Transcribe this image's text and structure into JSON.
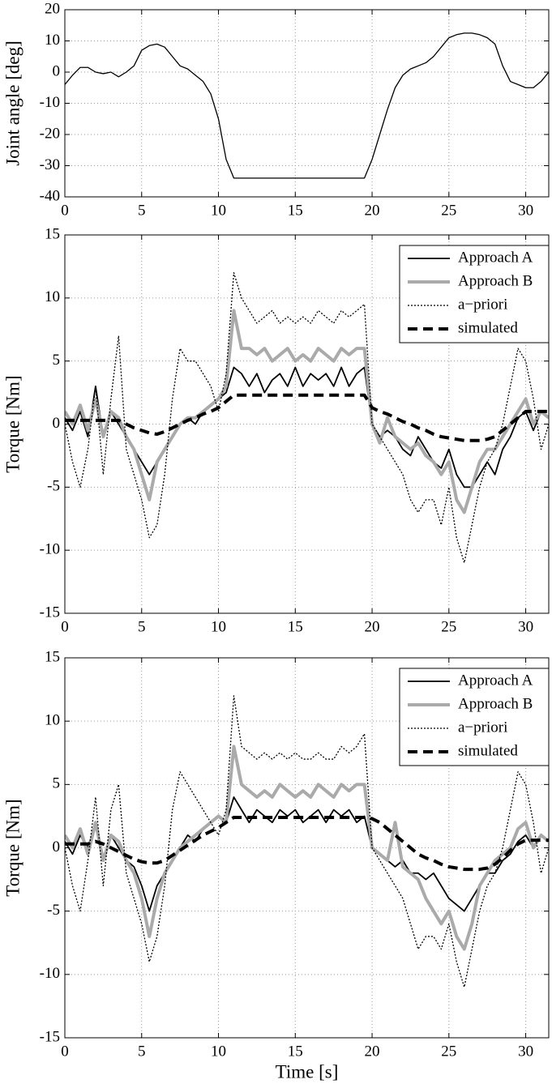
{
  "chart_data": [
    {
      "type": "line",
      "ylabel": "Joint angle [deg]",
      "grid": true,
      "xlim": [
        0,
        31.5
      ],
      "xticks": [
        0,
        5,
        10,
        15,
        20,
        25,
        30
      ],
      "ylim": [
        -40,
        20
      ],
      "yticks": [
        -40,
        -30,
        -20,
        -10,
        0,
        10,
        20
      ],
      "x": [
        0,
        0.5,
        1,
        1.5,
        2,
        2.5,
        3,
        3.5,
        4,
        4.5,
        5,
        5.5,
        6,
        6.5,
        7,
        7.5,
        8,
        8.5,
        9,
        9.5,
        10,
        10.5,
        11,
        11.5,
        12,
        12.5,
        13,
        13.5,
        14,
        14.5,
        15,
        15.5,
        16,
        16.5,
        17,
        17.5,
        18,
        18.5,
        19,
        19.5,
        20,
        20.5,
        21,
        21.5,
        22,
        22.5,
        23,
        23.5,
        24,
        24.5,
        25,
        25.5,
        26,
        26.5,
        27,
        27.5,
        28,
        28.5,
        29,
        29.5,
        30,
        30.5,
        31,
        31.5
      ],
      "series": [
        {
          "color": "#000000",
          "linestyle": "solid",
          "linewidth": 1.3,
          "values": [
            -4,
            -1,
            1.5,
            1.5,
            0,
            -0.5,
            0,
            -1.5,
            0,
            2,
            7,
            8.5,
            9,
            8,
            5,
            2,
            1,
            -1,
            -3,
            -7,
            -15,
            -28,
            -34,
            -34,
            -34,
            -34,
            -34,
            -34,
            -34,
            -34,
            -34,
            -34,
            -34,
            -34,
            -34,
            -34,
            -34,
            -34,
            -34,
            -34,
            -28,
            -20,
            -12,
            -5,
            -1,
            1,
            2,
            3,
            5,
            8,
            11,
            12,
            12.5,
            12.5,
            12,
            11,
            9,
            2,
            -3,
            -4,
            -5,
            -5,
            -3,
            0
          ]
        }
      ]
    },
    {
      "type": "line",
      "ylabel": "Torque [Nm]",
      "grid": true,
      "legend": "upper right",
      "xlim": [
        0,
        31.5
      ],
      "xticks": [
        0,
        5,
        10,
        15,
        20,
        25,
        30
      ],
      "ylim": [
        -15,
        15
      ],
      "yticks": [
        -15,
        -10,
        -5,
        0,
        5,
        10,
        15
      ],
      "x": [
        0,
        0.5,
        1,
        1.5,
        2,
        2.5,
        3,
        3.5,
        4,
        4.5,
        5,
        5.5,
        6,
        6.5,
        7,
        7.5,
        8,
        8.5,
        9,
        9.5,
        10,
        10.5,
        11,
        11.5,
        12,
        12.5,
        13,
        13.5,
        14,
        14.5,
        15,
        15.5,
        16,
        16.5,
        17,
        17.5,
        18,
        18.5,
        19,
        19.5,
        20,
        20.5,
        21,
        21.5,
        22,
        22.5,
        23,
        23.5,
        24,
        24.5,
        25,
        25.5,
        26,
        26.5,
        27,
        27.5,
        28,
        28.5,
        29,
        29.5,
        30,
        30.5,
        31,
        31.5
      ],
      "series": [
        {
          "name": "Approach A",
          "color": "#000000",
          "linestyle": "solid",
          "linewidth": 1.8,
          "values": [
            0.5,
            -0.5,
            1,
            -1,
            3,
            -1,
            1,
            0,
            -1,
            -2,
            -3,
            -4,
            -3,
            -2,
            -1,
            0,
            0.5,
            0,
            1,
            1.5,
            2,
            2.5,
            4.5,
            4,
            3,
            4,
            2.5,
            3.5,
            4,
            3,
            4.5,
            3,
            4,
            3.5,
            4,
            3,
            4.5,
            3,
            4,
            4.5,
            0,
            -1,
            -0.5,
            -1,
            -2,
            -2.5,
            -1,
            -2,
            -3,
            -3.5,
            -2,
            -4,
            -5,
            -5,
            -4,
            -3,
            -4,
            -2,
            -1,
            0.5,
            1,
            -0.5,
            1,
            0.5
          ]
        },
        {
          "name": "Approach B",
          "color": "#aaaaaa",
          "linestyle": "solid",
          "linewidth": 4,
          "values": [
            1,
            0,
            1.5,
            -0.5,
            2,
            -1,
            1,
            0.5,
            -1,
            -2,
            -4,
            -6,
            -3,
            -2,
            -1,
            0,
            0.5,
            0.5,
            1,
            1.5,
            2,
            3,
            9,
            6,
            6,
            5.5,
            6,
            5,
            5.5,
            6,
            5,
            5.5,
            5,
            6,
            5.5,
            5,
            6,
            5.5,
            6,
            6,
            0,
            -1.5,
            0.5,
            -1,
            -1.5,
            -2,
            -1.5,
            -2.5,
            -3,
            -4,
            -3,
            -6,
            -7,
            -5,
            -3,
            -2,
            -2,
            -1,
            0,
            1,
            2,
            0,
            1,
            0.5
          ]
        },
        {
          "name": "a−priori",
          "color": "#000000",
          "linestyle": "dotted",
          "linewidth": 1.3,
          "values": [
            0,
            -3,
            -5,
            -2,
            3,
            -4,
            2,
            7,
            -2,
            -4,
            -6,
            -9,
            -8,
            -4,
            2,
            6,
            5,
            5,
            4,
            3,
            1,
            4,
            12,
            10,
            9,
            8,
            8.5,
            9,
            8,
            8.5,
            8,
            8.5,
            8,
            9,
            8.5,
            8,
            9,
            8.5,
            9,
            9.5,
            0,
            -1,
            -2,
            -3,
            -4,
            -6,
            -7,
            -6,
            -6,
            -8,
            -5,
            -9,
            -11,
            -8,
            -5,
            -3,
            -2,
            0,
            3,
            6,
            5,
            2,
            -2,
            0
          ]
        },
        {
          "name": "simulated",
          "color": "#000000",
          "linestyle": "dashed",
          "linewidth": 4,
          "values": [
            0.3,
            0.3,
            0.3,
            0.3,
            0.3,
            0.3,
            0.3,
            0.3,
            0,
            -0.3,
            -0.5,
            -0.7,
            -0.8,
            -0.6,
            -0.3,
            0,
            0.3,
            0.5,
            0.8,
            1,
            1.3,
            1.8,
            2.3,
            2.3,
            2.3,
            2.3,
            2.3,
            2.3,
            2.3,
            2.3,
            2.3,
            2.3,
            2.3,
            2.3,
            2.3,
            2.3,
            2.3,
            2.3,
            2.3,
            2.3,
            1.3,
            1,
            0.8,
            0.5,
            0.2,
            0,
            -0.3,
            -0.5,
            -0.8,
            -1,
            -1.1,
            -1.2,
            -1.3,
            -1.3,
            -1.3,
            -1.2,
            -1,
            -0.5,
            0,
            0.5,
            1,
            1,
            1,
            1
          ]
        }
      ]
    },
    {
      "type": "line",
      "ylabel": "Torque [Nm]",
      "xlabel": "Time [s]",
      "grid": true,
      "legend": "upper right",
      "xlim": [
        0,
        31.5
      ],
      "xticks": [
        0,
        5,
        10,
        15,
        20,
        25,
        30
      ],
      "ylim": [
        -15,
        15
      ],
      "yticks": [
        -15,
        -10,
        -5,
        0,
        5,
        10,
        15
      ],
      "x": [
        0,
        0.5,
        1,
        1.5,
        2,
        2.5,
        3,
        3.5,
        4,
        4.5,
        5,
        5.5,
        6,
        6.5,
        7,
        7.5,
        8,
        8.5,
        9,
        9.5,
        10,
        10.5,
        11,
        11.5,
        12,
        12.5,
        13,
        13.5,
        14,
        14.5,
        15,
        15.5,
        16,
        16.5,
        17,
        17.5,
        18,
        18.5,
        19,
        19.5,
        20,
        20.5,
        21,
        21.5,
        22,
        22.5,
        23,
        23.5,
        24,
        24.5,
        25,
        25.5,
        26,
        26.5,
        27,
        27.5,
        28,
        28.5,
        29,
        29.5,
        30,
        30.5,
        31,
        31.5
      ],
      "series": [
        {
          "name": "Approach A",
          "color": "#000000",
          "linestyle": "solid",
          "linewidth": 1.8,
          "values": [
            0.5,
            -0.5,
            1,
            0,
            2,
            -1,
            1,
            0,
            -1,
            -1.5,
            -3,
            -5,
            -3,
            -2,
            -1,
            0,
            1,
            0.5,
            1.5,
            2,
            2.5,
            2,
            4,
            3,
            2,
            3,
            2.5,
            2,
            3,
            2.5,
            3,
            2,
            2.5,
            3,
            2,
            3,
            2.5,
            3,
            2,
            2.5,
            0,
            -0.5,
            -1,
            -1.5,
            -1,
            -2,
            -2,
            -2.5,
            -2,
            -3,
            -4,
            -4.5,
            -5,
            -4,
            -3,
            -2,
            -2,
            -1,
            -0.5,
            0.5,
            1,
            0,
            1,
            0.5
          ]
        },
        {
          "name": "Approach B",
          "color": "#aaaaaa",
          "linestyle": "solid",
          "linewidth": 4,
          "values": [
            1,
            0,
            1.5,
            -0.5,
            2,
            -1,
            1,
            0.5,
            -1,
            -2,
            -4,
            -7,
            -4,
            -2,
            -1,
            0,
            0.5,
            1,
            1.5,
            2,
            2.5,
            2,
            8,
            5,
            4.5,
            4,
            4.5,
            4,
            5,
            4.5,
            4,
            4.5,
            4,
            5,
            4.5,
            4,
            5,
            4.5,
            5,
            5,
            0,
            -0.5,
            -1,
            2,
            -1.5,
            -2,
            -2.5,
            -4,
            -5,
            -6,
            -5,
            -7,
            -8,
            -6,
            -3,
            -2,
            -1,
            -0.5,
            0,
            1.5,
            2,
            0,
            1,
            0.5
          ]
        },
        {
          "name": "a−priori",
          "color": "#000000",
          "linestyle": "dotted",
          "linewidth": 1.3,
          "values": [
            0,
            -3,
            -5,
            -1,
            4,
            -3,
            3,
            5,
            -2,
            -4,
            -6,
            -9,
            -7,
            -3,
            3,
            6,
            5,
            4,
            3,
            2,
            1,
            3,
            12,
            8,
            7.5,
            7,
            7.5,
            7,
            7.5,
            7,
            7.5,
            7,
            7,
            7.5,
            7,
            7,
            8,
            7.5,
            8,
            9,
            0,
            -1,
            -2,
            -3,
            -4,
            -6,
            -8,
            -7,
            -7,
            -8,
            -6,
            -9,
            -11,
            -8,
            -5,
            -3,
            -2,
            0,
            3,
            6,
            5,
            2,
            -2,
            0
          ]
        },
        {
          "name": "simulated",
          "color": "#000000",
          "linestyle": "dashed",
          "linewidth": 4,
          "values": [
            0.3,
            0.3,
            0.3,
            0.3,
            0.5,
            0.3,
            0,
            -0.3,
            -0.6,
            -0.9,
            -1.1,
            -1.2,
            -1.2,
            -1,
            -0.6,
            -0.2,
            0.2,
            0.6,
            1,
            1.3,
            1.6,
            2,
            2.4,
            2.4,
            2.4,
            2.4,
            2.4,
            2.4,
            2.4,
            2.4,
            2.4,
            2.4,
            2.4,
            2.4,
            2.4,
            2.4,
            2.4,
            2.4,
            2.4,
            2.4,
            2.3,
            2,
            1.5,
            1,
            0.5,
            0,
            -0.5,
            -0.8,
            -1,
            -1.3,
            -1.5,
            -1.6,
            -1.7,
            -1.7,
            -1.7,
            -1.6,
            -1.3,
            -0.8,
            -0.2,
            0.3,
            0.6,
            0.6,
            0.6,
            0.6
          ]
        }
      ]
    }
  ]
}
